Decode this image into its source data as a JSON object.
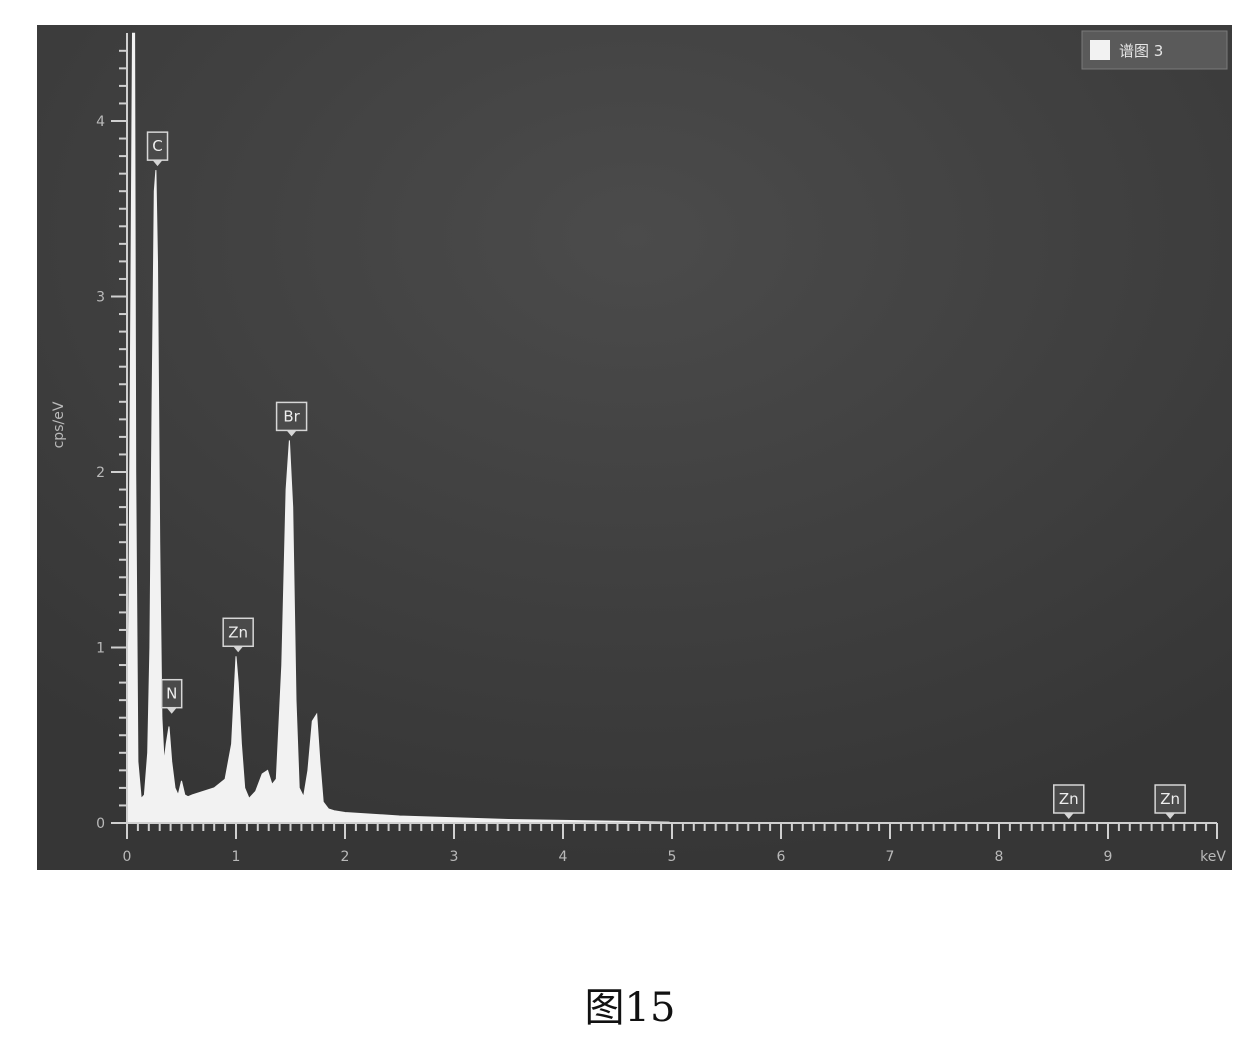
{
  "chart_data": {
    "type": "area",
    "ylabel": "cps/eV",
    "xunit": "keV",
    "xlim": [
      0,
      10
    ],
    "ylim": [
      0,
      4.5
    ],
    "x_ticks": [
      0,
      1,
      2,
      3,
      4,
      5,
      6,
      7,
      8,
      9
    ],
    "y_ticks": [
      0,
      1,
      2,
      3,
      4
    ],
    "legend": {
      "label": "谱图 3",
      "position": "top-right"
    },
    "grid": false,
    "background": "#3c3c3c",
    "fill_color": "#f2f2f2",
    "series": [
      {
        "x": [
          0.0,
          0.02,
          0.05,
          0.07,
          0.08,
          0.1,
          0.13,
          0.16,
          0.19,
          0.21,
          0.23,
          0.25,
          0.265,
          0.28,
          0.3,
          0.32,
          0.34,
          0.36,
          0.385,
          0.41,
          0.44,
          0.47,
          0.5,
          0.53,
          0.56,
          0.6,
          0.7,
          0.8,
          0.9,
          0.96,
          1.0,
          1.02,
          1.05,
          1.08,
          1.12,
          1.18,
          1.24,
          1.29,
          1.33,
          1.37,
          1.42,
          1.46,
          1.49,
          1.52,
          1.55,
          1.58,
          1.62,
          1.66,
          1.7,
          1.74,
          1.77,
          1.8,
          1.85,
          1.9,
          2.0,
          2.5,
          3.0,
          3.5,
          4.0,
          4.5,
          4.97,
          5.0
        ],
        "y": [
          0.0,
          1.5,
          4.5,
          4.5,
          2.0,
          0.35,
          0.14,
          0.16,
          0.4,
          1.0,
          2.4,
          3.6,
          3.72,
          3.2,
          1.6,
          0.6,
          0.35,
          0.45,
          0.55,
          0.35,
          0.2,
          0.16,
          0.24,
          0.16,
          0.15,
          0.16,
          0.18,
          0.2,
          0.25,
          0.45,
          0.95,
          0.8,
          0.45,
          0.2,
          0.14,
          0.18,
          0.28,
          0.3,
          0.22,
          0.25,
          0.9,
          1.9,
          2.18,
          1.8,
          0.7,
          0.2,
          0.15,
          0.3,
          0.58,
          0.62,
          0.35,
          0.12,
          0.08,
          0.07,
          0.06,
          0.04,
          0.03,
          0.02,
          0.015,
          0.01,
          0.005,
          0.0
        ]
      }
    ],
    "peak_labels": [
      {
        "element": "C",
        "x": 0.28,
        "y": 3.72
      },
      {
        "element": "N",
        "x": 0.41,
        "y": 0.6
      },
      {
        "element": "Zn",
        "x": 1.02,
        "y": 0.95
      },
      {
        "element": "Br",
        "x": 1.51,
        "y": 2.18
      },
      {
        "element": "Zn",
        "x": 8.64,
        "y": 0.0
      },
      {
        "element": "Zn",
        "x": 9.57,
        "y": 0.0
      }
    ]
  },
  "caption": "图15"
}
